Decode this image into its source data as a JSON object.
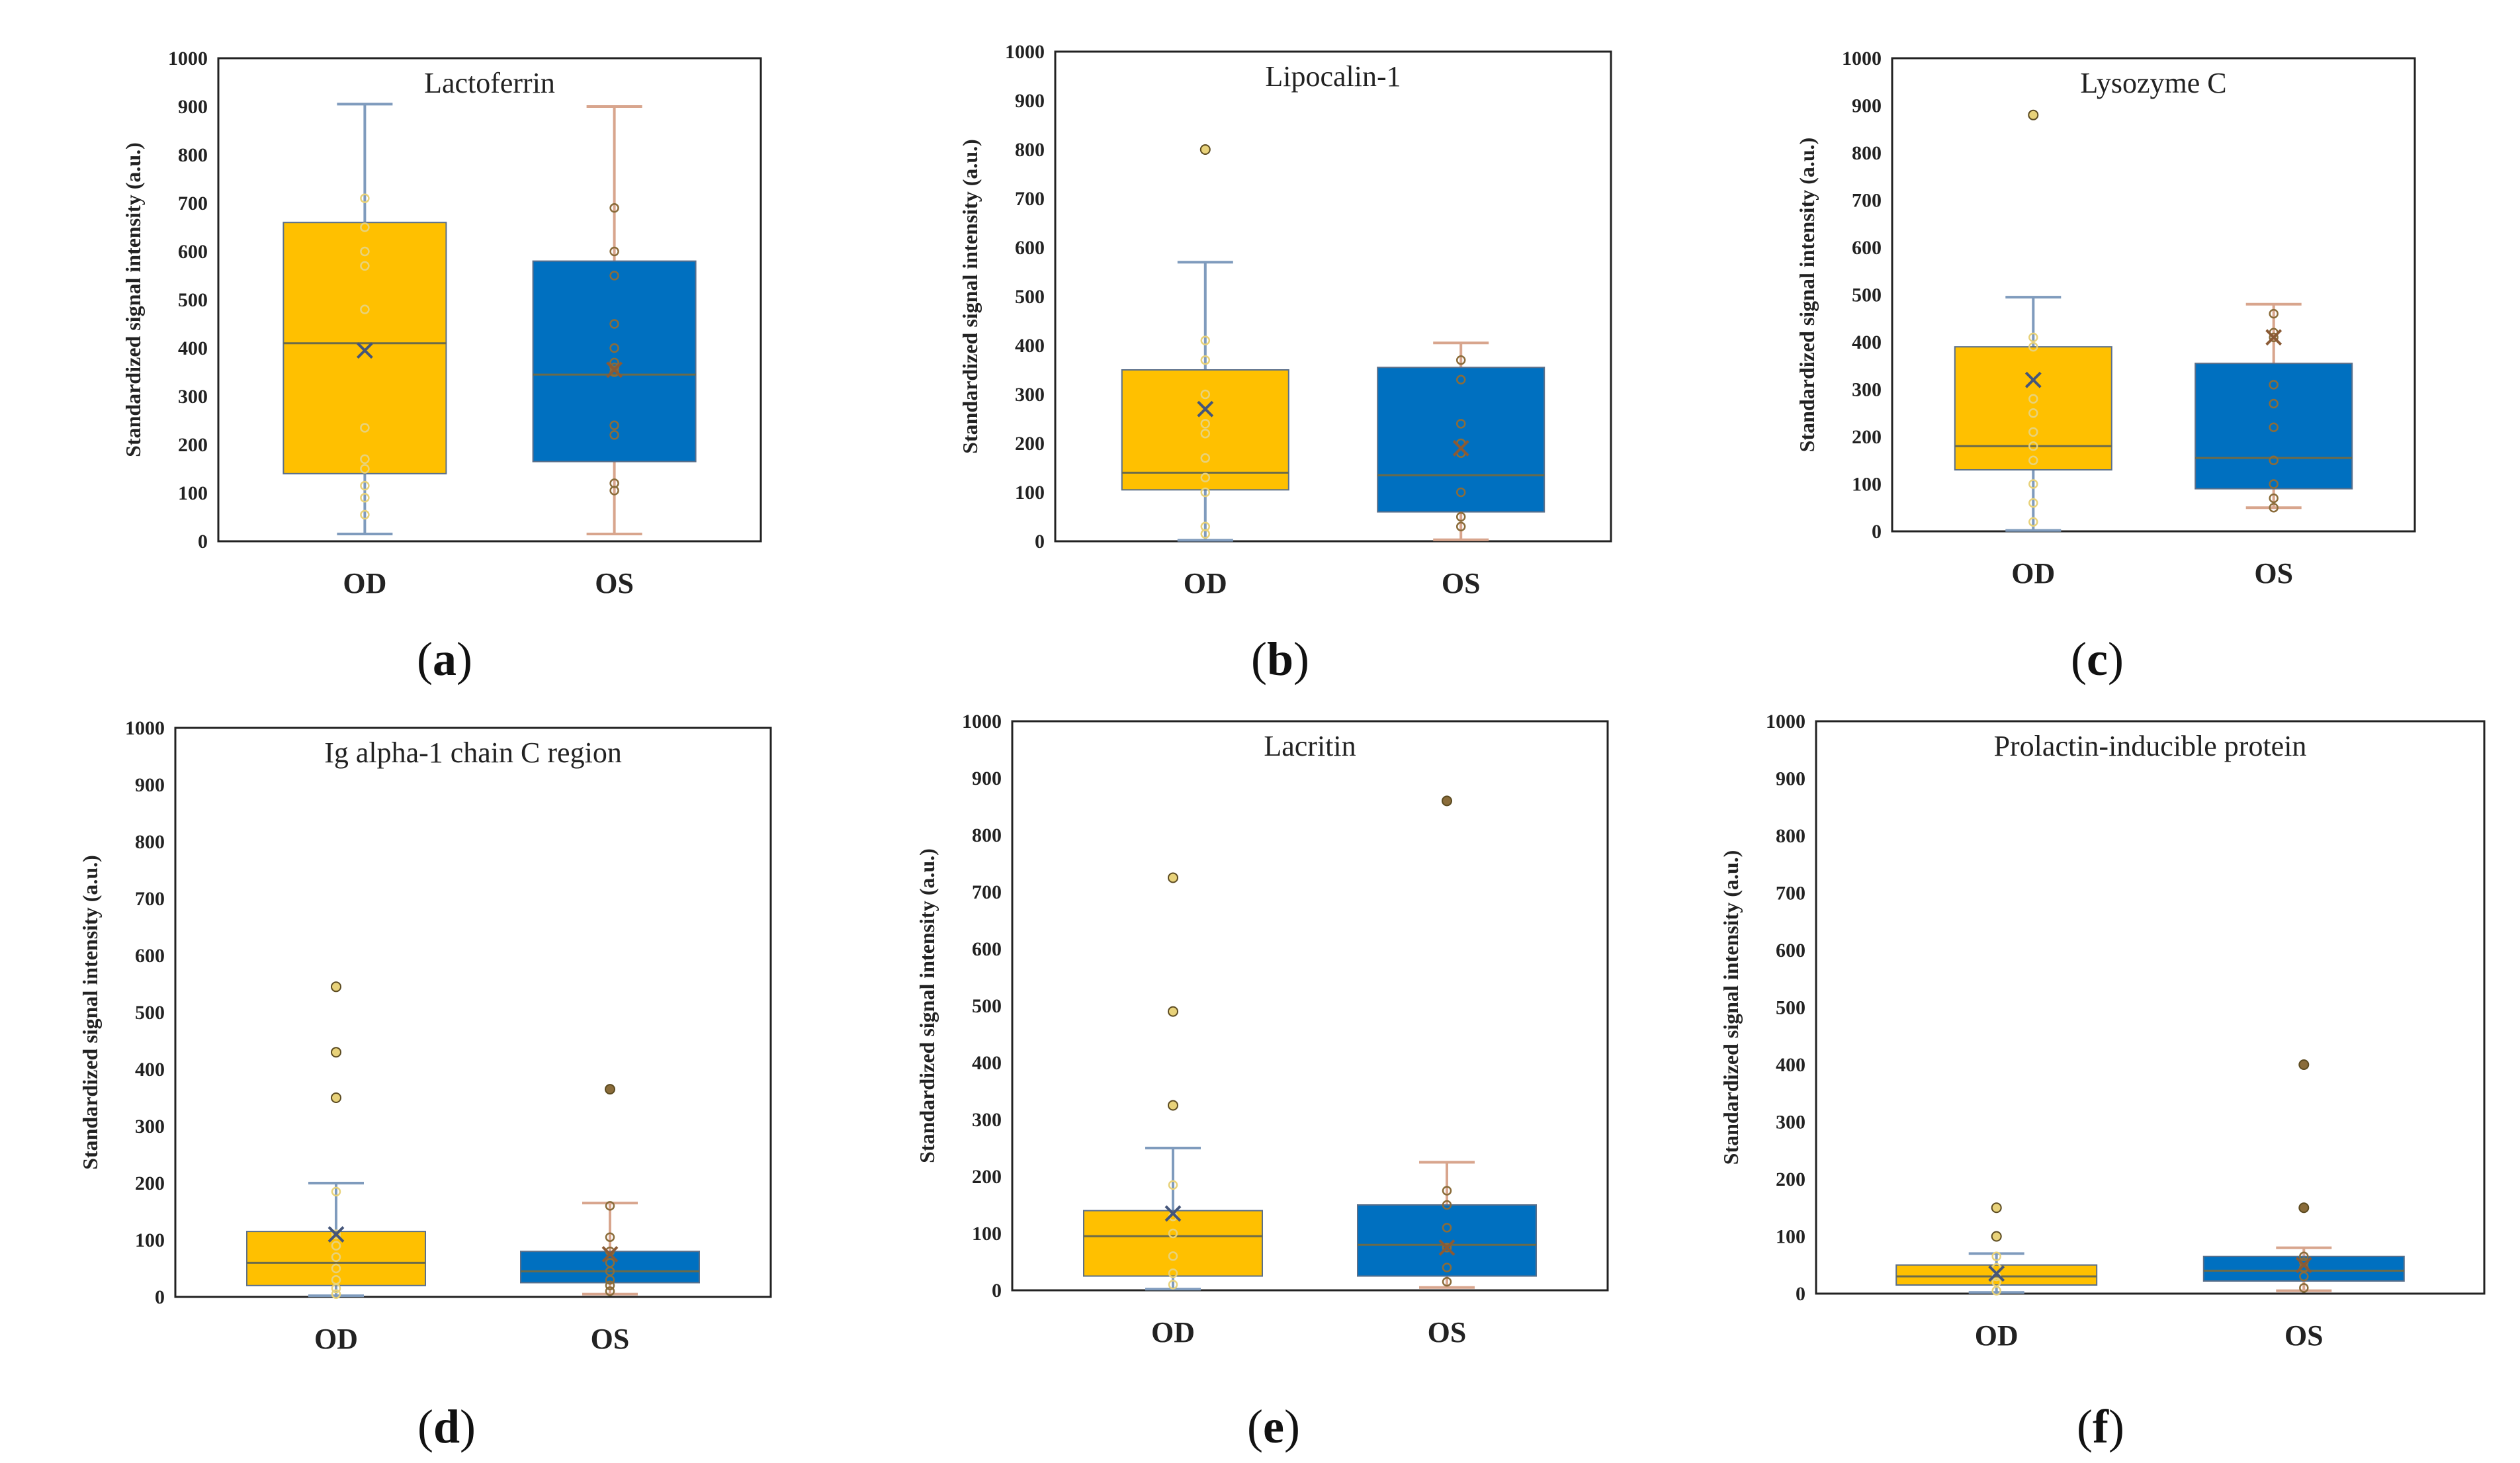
{
  "y_axis_label": "Standardized signal intensity (a.u.)",
  "chart_data": [
    {
      "panel": "a",
      "type": "box",
      "title": "Lactoferrin",
      "ylim": [
        0,
        1000
      ],
      "yticks": [
        0,
        100,
        200,
        300,
        400,
        500,
        600,
        700,
        800,
        900,
        1000
      ],
      "categories": [
        "OD",
        "OS"
      ],
      "series": [
        {
          "name": "OD",
          "color": "#FFC000",
          "min": 15,
          "q1": 140,
          "median": 410,
          "q3": 660,
          "max": 905,
          "mean": 395,
          "points": [
            55,
            90,
            115,
            150,
            170,
            235,
            480,
            570,
            600,
            650,
            710
          ]
        },
        {
          "name": "OS",
          "color": "#0070C0",
          "min": 15,
          "q1": 165,
          "median": 345,
          "q3": 580,
          "max": 900,
          "mean": 355,
          "points": [
            105,
            120,
            220,
            240,
            350,
            360,
            370,
            400,
            450,
            550,
            600,
            690
          ]
        }
      ]
    },
    {
      "panel": "b",
      "type": "box",
      "title": "Lipocalin-1",
      "ylim": [
        0,
        1000
      ],
      "yticks": [
        0,
        100,
        200,
        300,
        400,
        500,
        600,
        700,
        800,
        900,
        1000
      ],
      "categories": [
        "OD",
        "OS"
      ],
      "series": [
        {
          "name": "OD",
          "color": "#FFC000",
          "min": 2,
          "q1": 105,
          "median": 140,
          "q3": 350,
          "max": 570,
          "mean": 270,
          "outliers": [
            800
          ],
          "points": [
            15,
            30,
            100,
            130,
            170,
            220,
            240,
            300,
            370,
            410
          ]
        },
        {
          "name": "OS",
          "color": "#0070C0",
          "min": 3,
          "q1": 60,
          "median": 135,
          "q3": 355,
          "max": 405,
          "mean": 190,
          "points": [
            30,
            50,
            100,
            180,
            200,
            240,
            330,
            370
          ]
        }
      ]
    },
    {
      "panel": "c",
      "type": "box",
      "title": "Lysozyme C",
      "ylim": [
        0,
        1000
      ],
      "yticks": [
        0,
        100,
        200,
        300,
        400,
        500,
        600,
        700,
        800,
        900,
        1000
      ],
      "categories": [
        "OD",
        "OS"
      ],
      "series": [
        {
          "name": "OD",
          "color": "#FFC000",
          "min": 2,
          "q1": 130,
          "median": 180,
          "q3": 390,
          "max": 495,
          "mean": 320,
          "outliers": [
            880
          ],
          "points": [
            20,
            60,
            100,
            150,
            180,
            210,
            250,
            280,
            390,
            410
          ]
        },
        {
          "name": "OS",
          "color": "#0070C0",
          "min": 50,
          "q1": 90,
          "median": 155,
          "q3": 355,
          "max": 480,
          "mean": 410,
          "points": [
            50,
            70,
            100,
            150,
            220,
            270,
            310,
            410,
            420,
            460
          ]
        }
      ]
    },
    {
      "panel": "d",
      "type": "box",
      "title": "Ig alpha-1 chain C region",
      "ylim": [
        0,
        1000
      ],
      "yticks": [
        0,
        100,
        200,
        300,
        400,
        500,
        600,
        700,
        800,
        900,
        1000
      ],
      "categories": [
        "OD",
        "OS"
      ],
      "series": [
        {
          "name": "OD",
          "color": "#FFC000",
          "min": 2,
          "q1": 20,
          "median": 60,
          "q3": 115,
          "max": 200,
          "mean": 110,
          "outliers": [
            350,
            430,
            545
          ],
          "points": [
            5,
            15,
            30,
            50,
            70,
            90,
            110,
            185
          ]
        },
        {
          "name": "OS",
          "color": "#0070C0",
          "min": 5,
          "q1": 25,
          "median": 45,
          "q3": 80,
          "max": 165,
          "mean": 75,
          "outliers": [
            365
          ],
          "points": [
            10,
            20,
            30,
            45,
            60,
            80,
            105,
            160
          ]
        }
      ]
    },
    {
      "panel": "e",
      "type": "box",
      "title": "Lacritin",
      "ylim": [
        0,
        1000
      ],
      "yticks": [
        0,
        100,
        200,
        300,
        400,
        500,
        600,
        700,
        800,
        900,
        1000
      ],
      "categories": [
        "OD",
        "OS"
      ],
      "series": [
        {
          "name": "OD",
          "color": "#FFC000",
          "min": 2,
          "q1": 25,
          "median": 95,
          "q3": 140,
          "max": 250,
          "mean": 135,
          "outliers": [
            325,
            490,
            725
          ],
          "points": [
            10,
            30,
            60,
            100,
            130,
            185
          ]
        },
        {
          "name": "OS",
          "color": "#0070C0",
          "min": 5,
          "q1": 25,
          "median": 80,
          "q3": 150,
          "max": 225,
          "mean": 75,
          "outliers": [
            860
          ],
          "points": [
            15,
            40,
            75,
            110,
            150,
            175
          ]
        }
      ]
    },
    {
      "panel": "f",
      "type": "box",
      "title": "Prolactin-inducible protein",
      "ylim": [
        0,
        1000
      ],
      "yticks": [
        0,
        100,
        200,
        300,
        400,
        500,
        600,
        700,
        800,
        900,
        1000
      ],
      "categories": [
        "OD",
        "OS"
      ],
      "series": [
        {
          "name": "OD",
          "color": "#FFC000",
          "min": 2,
          "q1": 15,
          "median": 30,
          "q3": 50,
          "max": 70,
          "mean": 35,
          "outliers": [
            100,
            150
          ],
          "points": [
            5,
            20,
            30,
            45,
            65
          ]
        },
        {
          "name": "OS",
          "color": "#0070C0",
          "min": 5,
          "q1": 22,
          "median": 40,
          "q3": 65,
          "max": 80,
          "mean": 50,
          "outliers": [
            150,
            400
          ],
          "points": [
            10,
            30,
            45,
            55,
            65
          ]
        }
      ]
    }
  ]
}
